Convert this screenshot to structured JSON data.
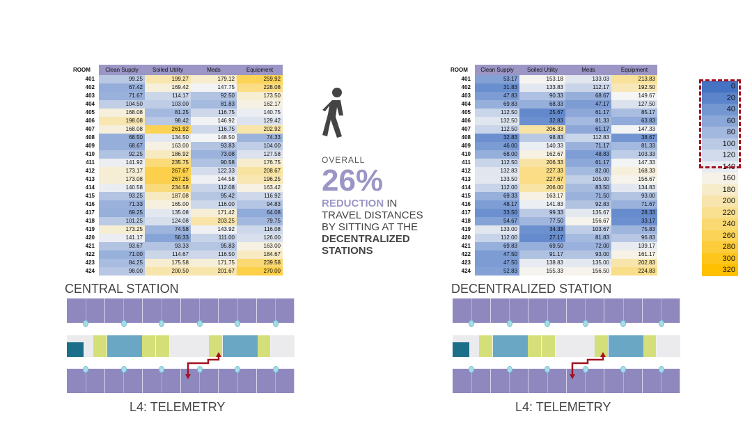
{
  "tables": {
    "central": {
      "room_header": "ROOM",
      "columns": [
        "Clean Supply",
        "Soiled Utility",
        "Meds",
        "Equipment"
      ],
      "rows": [
        {
          "room": "401",
          "values": [
            "99.25",
            "199.27",
            "179.12",
            "259.92"
          ]
        },
        {
          "room": "402",
          "values": [
            "67.42",
            "169.42",
            "147.75",
            "228.08"
          ]
        },
        {
          "room": "403",
          "values": [
            "71.67",
            "114.17",
            "92.50",
            "173.50"
          ]
        },
        {
          "room": "404",
          "values": [
            "104.50",
            "103.00",
            "81.83",
            "162.17"
          ]
        },
        {
          "room": "405",
          "values": [
            "168.08",
            "81.25",
            "116.75",
            "140.75"
          ]
        },
        {
          "room": "406",
          "values": [
            "198.08",
            "98.42",
            "146.92",
            "129.42"
          ]
        },
        {
          "room": "407",
          "values": [
            "168.08",
            "261.92",
            "116.75",
            "202.92"
          ]
        },
        {
          "room": "408",
          "values": [
            "68.50",
            "134.50",
            "148.50",
            "74.33"
          ]
        },
        {
          "room": "409",
          "values": [
            "68.67",
            "163.00",
            "93.83",
            "104.00"
          ]
        },
        {
          "room": "410",
          "values": [
            "92.25",
            "186.92",
            "73.08",
            "127.58"
          ]
        },
        {
          "room": "411",
          "values": [
            "141.92",
            "235.75",
            "90.58",
            "176.75"
          ]
        },
        {
          "room": "412",
          "values": [
            "173.17",
            "267.67",
            "122.33",
            "208.67"
          ]
        },
        {
          "room": "413",
          "values": [
            "173.08",
            "267.25",
            "144.58",
            "196.25"
          ]
        },
        {
          "room": "414",
          "values": [
            "140.58",
            "234.58",
            "112.08",
            "163.42"
          ]
        },
        {
          "room": "415",
          "values": [
            "93.25",
            "187.08",
            "95.42",
            "116.92"
          ]
        },
        {
          "room": "416",
          "values": [
            "71.33",
            "165.00",
            "116.00",
            "94.83"
          ]
        },
        {
          "room": "417",
          "values": [
            "69.25",
            "135.08",
            "171.42",
            "64.08"
          ]
        },
        {
          "room": "418",
          "values": [
            "101.25",
            "124.08",
            "203.25",
            "79.75"
          ]
        },
        {
          "room": "419",
          "values": [
            "173.25",
            "74.58",
            "143.92",
            "116.08"
          ]
        },
        {
          "room": "420",
          "values": [
            "141.17",
            "56.33",
            "111.00",
            "126.00"
          ]
        },
        {
          "room": "421",
          "values": [
            "93.67",
            "93.33",
            "95.83",
            "163.00"
          ]
        },
        {
          "room": "422",
          "values": [
            "71.00",
            "114.67",
            "116.50",
            "184.67"
          ]
        },
        {
          "room": "423",
          "values": [
            "84.25",
            "175.58",
            "171.75",
            "239.58"
          ]
        },
        {
          "room": "424",
          "values": [
            "98.00",
            "200.50",
            "201.67",
            "270.00"
          ]
        }
      ]
    },
    "decentralized": {
      "room_header": "ROOM",
      "columns": [
        "Clean Supply",
        "Soiled Utility",
        "Meds",
        "Equipment"
      ],
      "rows": [
        {
          "room": "401",
          "values": [
            "53.17",
            "153.18",
            "133.03",
            "213.83"
          ]
        },
        {
          "room": "402",
          "values": [
            "31.83",
            "133.83",
            "112.17",
            "192.50"
          ]
        },
        {
          "room": "403",
          "values": [
            "47.83",
            "90.33",
            "68.67",
            "149.67"
          ]
        },
        {
          "room": "404",
          "values": [
            "69.83",
            "68.33",
            "47.17",
            "127.50"
          ]
        },
        {
          "room": "405",
          "values": [
            "112.50",
            "25.67",
            "61.17",
            "85.17"
          ]
        },
        {
          "room": "406",
          "values": [
            "132.50",
            "32.83",
            "81.33",
            "63.83"
          ]
        },
        {
          "room": "407",
          "values": [
            "112.50",
            "206.33",
            "61.17",
            "147.33"
          ]
        },
        {
          "room": "408",
          "values": [
            "32.83",
            "98.83",
            "112.83",
            "38.67"
          ]
        },
        {
          "room": "409",
          "values": [
            "46.00",
            "140.33",
            "71.17",
            "81.33"
          ]
        },
        {
          "room": "410",
          "values": [
            "68.00",
            "162.67",
            "48.83",
            "103.33"
          ]
        },
        {
          "room": "411",
          "values": [
            "112.50",
            "206.33",
            "61.17",
            "147.33"
          ]
        },
        {
          "room": "412",
          "values": [
            "132.83",
            "227.33",
            "82.00",
            "168.33"
          ]
        },
        {
          "room": "413",
          "values": [
            "133.50",
            "227.67",
            "105.00",
            "156.67"
          ]
        },
        {
          "room": "414",
          "values": [
            "112.00",
            "206.00",
            "83.50",
            "134.83"
          ]
        },
        {
          "room": "415",
          "values": [
            "69.33",
            "163.17",
            "71.50",
            "93.00"
          ]
        },
        {
          "room": "416",
          "values": [
            "48.17",
            "141.83",
            "92.83",
            "71.67"
          ]
        },
        {
          "room": "417",
          "values": [
            "33.50",
            "99.33",
            "135.67",
            "28.33"
          ]
        },
        {
          "room": "418",
          "values": [
            "54.67",
            "77.50",
            "156.67",
            "33.17"
          ]
        },
        {
          "room": "419",
          "values": [
            "133.00",
            "34.33",
            "103.67",
            "75.83"
          ]
        },
        {
          "room": "420",
          "values": [
            "112.00",
            "27.17",
            "81.83",
            "96.83"
          ]
        },
        {
          "room": "421",
          "values": [
            "69.83",
            "69.50",
            "72.00",
            "139.17"
          ]
        },
        {
          "room": "422",
          "values": [
            "47.50",
            "91.17",
            "93.00",
            "161.17"
          ]
        },
        {
          "room": "423",
          "values": [
            "47.50",
            "138.83",
            "135.00",
            "202.83"
          ]
        },
        {
          "room": "424",
          "values": [
            "52.83",
            "155.33",
            "156.50",
            "224.83"
          ]
        }
      ]
    }
  },
  "labels": {
    "central_title": "CENTRAL STATION",
    "decentralized_title": "DECENTRALIZED STATION",
    "central_floor": "L4: TELEMETRY",
    "decentralized_floor": "L4: TELEMETRY"
  },
  "summary": {
    "overall": "OVERALL",
    "percent": "26%",
    "reduction": "REDUCTION",
    "in": " IN",
    "line2": "TRAVEL DISTANCES",
    "line3": "BY SITTING AT THE",
    "line4": "DECENTRALIZED",
    "line5": "STATIONS"
  },
  "legend": {
    "values": [
      "0",
      "20",
      "40",
      "60",
      "80",
      "100",
      "120",
      "140",
      "160",
      "180",
      "200",
      "220",
      "240",
      "260",
      "280",
      "300",
      "320"
    ]
  },
  "icons": {
    "walking": "walking-person-icon"
  },
  "colors": {
    "header": "#9b96c6",
    "low": "#4573c4",
    "mid": "#f5f5f5",
    "high": "#ffc000",
    "highlight_border": "#a3121f",
    "accent_text": "#9b96c6",
    "path": "#a3121f"
  }
}
